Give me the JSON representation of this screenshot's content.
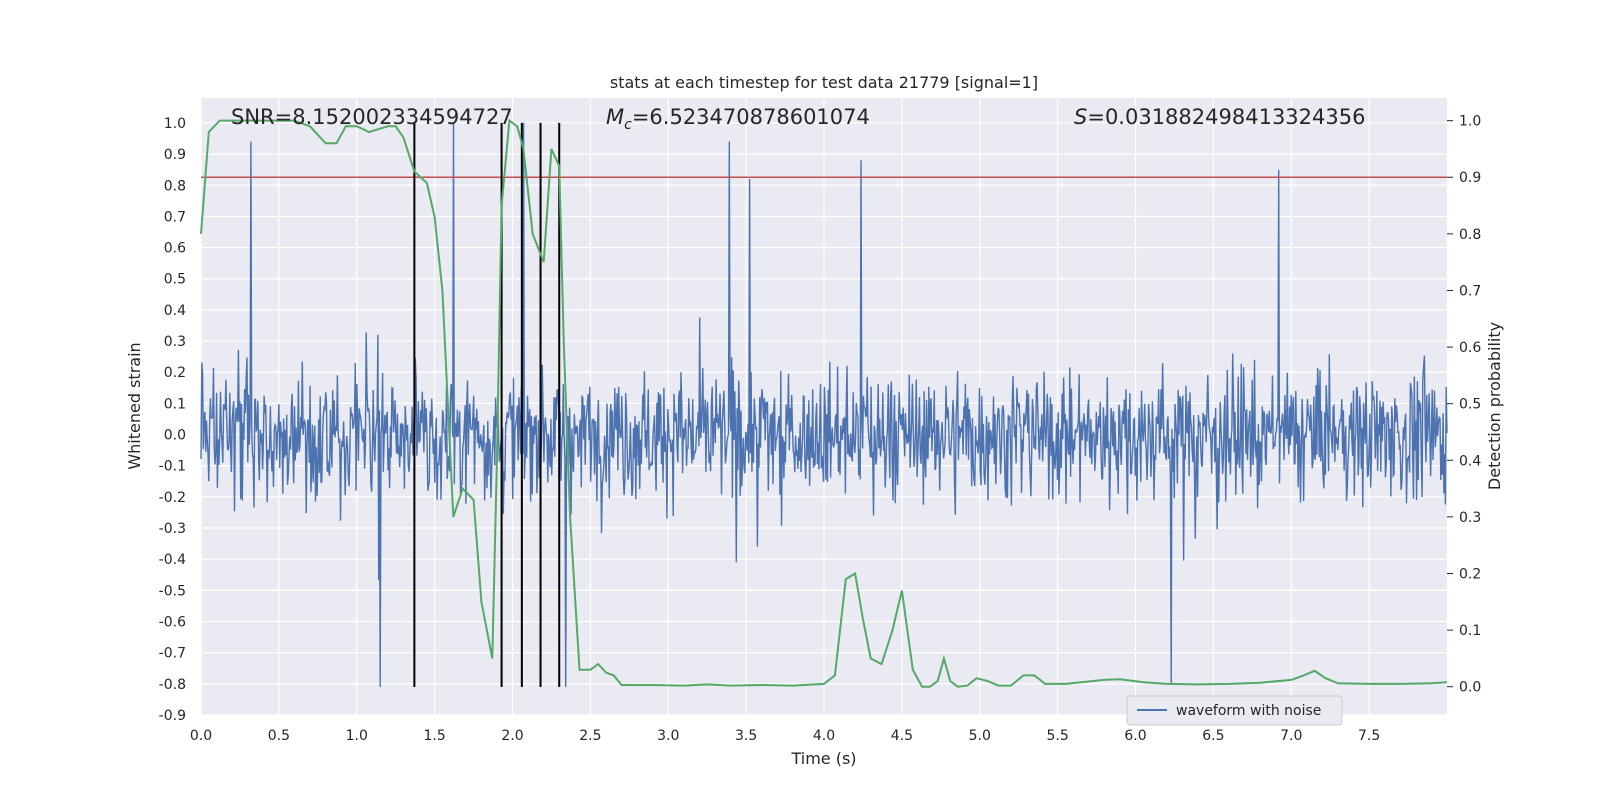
{
  "chart_data": {
    "type": "line",
    "title": "stats at each timestep for test data 21779 [signal=1]",
    "xlabel": "Time (s)",
    "ylabel_left": "Whitened strain",
    "ylabel_right": "Detection probability",
    "xlim": [
      0.0,
      8.0
    ],
    "ylim_left": [
      -0.9,
      1.08
    ],
    "ylim_right": [
      -0.05,
      1.04
    ],
    "x_ticks": [
      "0.0",
      "0.5",
      "1.0",
      "1.5",
      "2.0",
      "2.5",
      "3.0",
      "3.5",
      "4.0",
      "4.5",
      "5.0",
      "5.5",
      "6.0",
      "6.5",
      "7.0",
      "7.5"
    ],
    "y_left_ticks": [
      "-0.9",
      "-0.8",
      "-0.7",
      "-0.6",
      "-0.5",
      "-0.4",
      "-0.3",
      "-0.2",
      "-0.1",
      "0.0",
      "0.1",
      "0.2",
      "0.3",
      "0.4",
      "0.5",
      "0.6",
      "0.7",
      "0.8",
      "0.9",
      "1.0"
    ],
    "y_right_ticks": [
      "0.0",
      "0.1",
      "0.2",
      "0.3",
      "0.4",
      "0.5",
      "0.6",
      "0.7",
      "0.8",
      "0.9",
      "1.0"
    ],
    "annotations": {
      "snr": "SNR=8.152002334594727",
      "mc_symbol": "M",
      "mc_sub": "c",
      "mc_value": "=6.523470878601074",
      "s_symbol": "S",
      "s_value": "=0.031882498413324356"
    },
    "threshold": {
      "value": 0.9,
      "axis": "right",
      "color": "#c44e52"
    },
    "vertical_lines": [
      1.37,
      1.93,
      2.06,
      2.18,
      2.3
    ],
    "vline_range": [
      -0.81,
      1.0
    ],
    "legend": {
      "label": "waveform with noise",
      "location": "lower-right"
    },
    "waveform": {
      "name": "waveform with noise",
      "color": "#4c72b0",
      "sample_count": 1600,
      "envelope": {
        "min_approx": -0.81,
        "max_approx": 1.0,
        "typical_abs": 0.3
      },
      "spikes": [
        {
          "t": 0.32,
          "v": 0.94
        },
        {
          "t": 1.62,
          "v": 1.0
        },
        {
          "t": 2.07,
          "v": 1.0
        },
        {
          "t": 3.39,
          "v": 0.94
        },
        {
          "t": 3.52,
          "v": 0.82
        },
        {
          "t": 4.24,
          "v": 0.88
        },
        {
          "t": 6.92,
          "v": 0.85
        },
        {
          "t": 1.15,
          "v": -0.81
        },
        {
          "t": 2.34,
          "v": -0.81
        },
        {
          "t": 6.23,
          "v": -0.8
        }
      ]
    },
    "series": [
      {
        "name": "detection probability",
        "axis": "right",
        "color": "#55a868",
        "points": [
          [
            0.0,
            0.8
          ],
          [
            0.05,
            0.98
          ],
          [
            0.12,
            1.0
          ],
          [
            0.6,
            1.0
          ],
          [
            0.7,
            0.99
          ],
          [
            0.8,
            0.96
          ],
          [
            0.87,
            0.96
          ],
          [
            0.93,
            0.99
          ],
          [
            1.0,
            0.99
          ],
          [
            1.08,
            0.98
          ],
          [
            1.2,
            0.99
          ],
          [
            1.25,
            0.99
          ],
          [
            1.3,
            0.97
          ],
          [
            1.37,
            0.91
          ],
          [
            1.45,
            0.89
          ],
          [
            1.5,
            0.83
          ],
          [
            1.55,
            0.7
          ],
          [
            1.62,
            0.3
          ],
          [
            1.68,
            0.35
          ],
          [
            1.75,
            0.33
          ],
          [
            1.8,
            0.15
          ],
          [
            1.87,
            0.05
          ],
          [
            1.9,
            0.4
          ],
          [
            1.93,
            0.85
          ],
          [
            1.98,
            1.0
          ],
          [
            2.03,
            0.99
          ],
          [
            2.07,
            0.95
          ],
          [
            2.13,
            0.8
          ],
          [
            2.2,
            0.75
          ],
          [
            2.25,
            0.95
          ],
          [
            2.3,
            0.92
          ],
          [
            2.33,
            0.6
          ],
          [
            2.37,
            0.3
          ],
          [
            2.43,
            0.03
          ],
          [
            2.5,
            0.03
          ],
          [
            2.55,
            0.04
          ],
          [
            2.6,
            0.025
          ],
          [
            2.65,
            0.02
          ],
          [
            2.7,
            0.003
          ],
          [
            2.9,
            0.003
          ],
          [
            3.1,
            0.002
          ],
          [
            3.25,
            0.004
          ],
          [
            3.4,
            0.002
          ],
          [
            3.6,
            0.003
          ],
          [
            3.8,
            0.002
          ],
          [
            4.0,
            0.005
          ],
          [
            4.07,
            0.02
          ],
          [
            4.14,
            0.19
          ],
          [
            4.2,
            0.2
          ],
          [
            4.25,
            0.12
          ],
          [
            4.3,
            0.05
          ],
          [
            4.37,
            0.04
          ],
          [
            4.44,
            0.1
          ],
          [
            4.5,
            0.17
          ],
          [
            4.57,
            0.03
          ],
          [
            4.63,
            0.0
          ],
          [
            4.68,
            0.0
          ],
          [
            4.73,
            0.01
          ],
          [
            4.77,
            0.05
          ],
          [
            4.81,
            0.01
          ],
          [
            4.86,
            0.0
          ],
          [
            4.92,
            0.002
          ],
          [
            4.98,
            0.015
          ],
          [
            5.05,
            0.01
          ],
          [
            5.12,
            0.002
          ],
          [
            5.2,
            0.002
          ],
          [
            5.28,
            0.02
          ],
          [
            5.35,
            0.02
          ],
          [
            5.42,
            0.005
          ],
          [
            5.55,
            0.005
          ],
          [
            5.65,
            0.008
          ],
          [
            5.8,
            0.012
          ],
          [
            5.9,
            0.013
          ],
          [
            6.05,
            0.008
          ],
          [
            6.2,
            0.005
          ],
          [
            6.4,
            0.004
          ],
          [
            6.6,
            0.005
          ],
          [
            6.8,
            0.007
          ],
          [
            7.0,
            0.012
          ],
          [
            7.08,
            0.02
          ],
          [
            7.15,
            0.028
          ],
          [
            7.22,
            0.015
          ],
          [
            7.3,
            0.006
          ],
          [
            7.5,
            0.005
          ],
          [
            7.7,
            0.005
          ],
          [
            7.9,
            0.006
          ],
          [
            8.0,
            0.008
          ]
        ]
      }
    ]
  }
}
